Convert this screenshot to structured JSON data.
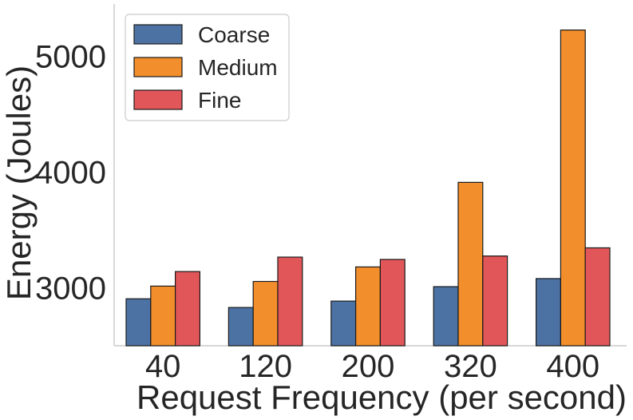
{
  "chart_data": {
    "type": "bar",
    "title": "",
    "xlabel": "Request Frequency (per second)",
    "ylabel": "Energy (Joules)",
    "categories": [
      "40",
      "120",
      "200",
      "320",
      "400"
    ],
    "series": [
      {
        "name": "Coarse",
        "color": "#4c72a4",
        "values": [
          2905,
          2830,
          2885,
          3010,
          3080
        ]
      },
      {
        "name": "Medium",
        "color": "#f28e2b",
        "color_hex": "#f0902f",
        "values": [
          3015,
          3055,
          3180,
          3910,
          5225
        ]
      },
      {
        "name": "Fine",
        "color": "#e15759",
        "values": [
          3140,
          3265,
          3245,
          3275,
          3345
        ]
      }
    ],
    "ylim": [
      2500,
      5450
    ],
    "yticks": [
      3000,
      4000,
      5000
    ],
    "ytick_labels": [
      "3000",
      "4000",
      "5000"
    ],
    "legend_position": "top-left",
    "grid": false
  }
}
